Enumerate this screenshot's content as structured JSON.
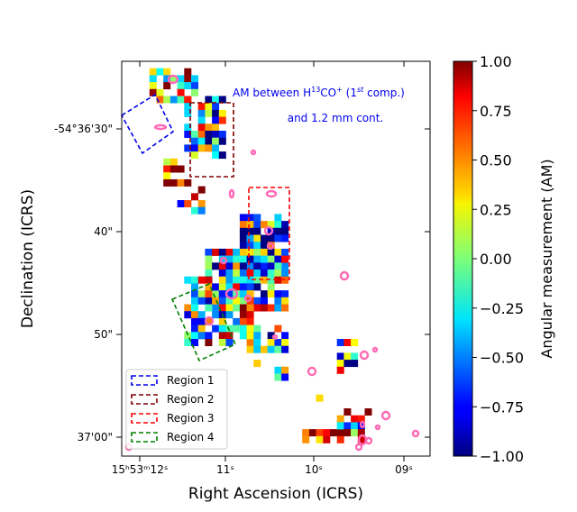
{
  "chart_data": {
    "type": "heatmap",
    "title": "",
    "xlabel": "Right Ascension (ICRS)",
    "ylabel": "Declination (ICRS)",
    "x_ticks": [
      {
        "label": "15ʰ53ᵐ12ˢ"
      },
      {
        "label": "11ˢ"
      },
      {
        "label": "10ˢ"
      },
      {
        "label": "09ˢ"
      }
    ],
    "y_ticks": [
      {
        "label": "-54°36'30\""
      },
      {
        "label": "40\""
      },
      {
        "label": "50\""
      },
      {
        "label": "37'00\""
      }
    ],
    "annotation": {
      "line1_prefix": "AM between H",
      "line1_sup1": "13",
      "line1_mid": "CO",
      "line1_sup2": "+",
      "line1_paren_open": " (1",
      "line1_sup3": "st",
      "line1_suffix": " comp.)",
      "line2": "and 1.2 mm cont."
    },
    "colorbar": {
      "label": "Angular measurement (AM)",
      "colormap": "jet",
      "range": [
        -1.0,
        1.0
      ],
      "ticks": [
        "1.00",
        "0.75",
        "0.50",
        "0.25",
        "0.00",
        "−0.25",
        "−0.50",
        "−0.75",
        "−1.00"
      ],
      "tick_values": [
        1.0,
        0.75,
        0.5,
        0.25,
        0.0,
        -0.25,
        -0.5,
        -0.75,
        -1.0
      ]
    },
    "legend": [
      {
        "label": "Region 1",
        "color": "#0000ee"
      },
      {
        "label": "Region 2",
        "color": "#800000"
      },
      {
        "label": "Region 3",
        "color": "#ff0000"
      },
      {
        "label": "Region 4",
        "color": "#008000"
      }
    ],
    "contour_color": "#ff69b4"
  }
}
